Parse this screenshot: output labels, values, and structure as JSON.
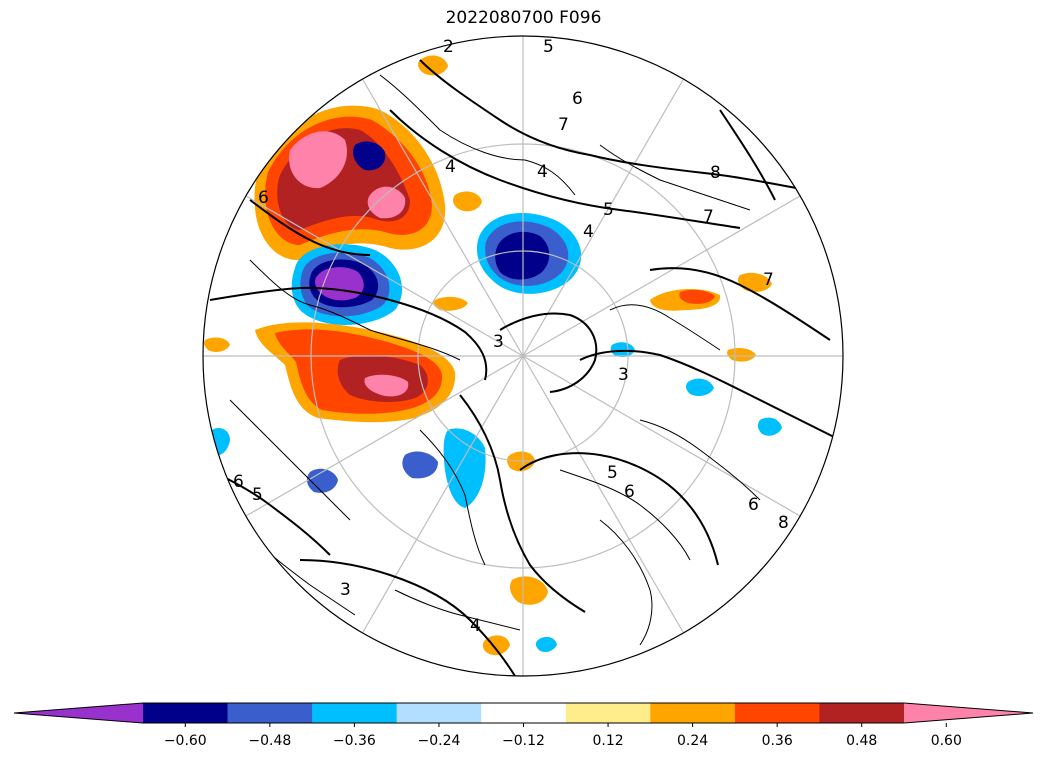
{
  "title": "2022080700 F096",
  "colorbar": {
    "colors": [
      "#9932cc",
      "#00008b",
      "#3a5fcd",
      "#00bfff",
      "#b2dfff",
      "#ffffff",
      "#ffec8b",
      "#ffa500",
      "#ff4500",
      "#b22222",
      "#ff82ab"
    ],
    "tick_labels": [
      "−0.60",
      "−0.48",
      "−0.36",
      "−0.24",
      "−0.12",
      "0.12",
      "0.24",
      "0.36",
      "0.48",
      "0.60"
    ],
    "extend": "both"
  },
  "contour_labels": [
    "2",
    "3",
    "3",
    "3",
    "4",
    "4",
    "4",
    "4",
    "5",
    "5",
    "5",
    "5",
    "6",
    "6",
    "6",
    "6",
    "6",
    "7",
    "7",
    "7",
    "8",
    "8"
  ]
}
